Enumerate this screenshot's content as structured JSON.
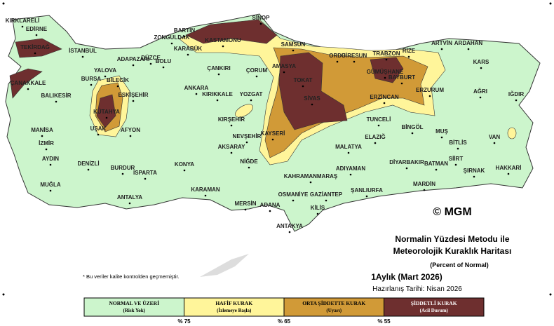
{
  "map": {
    "title_lines": [
      "Normalin Yüzdesi Metodu ile",
      "Meteorolojik Kuraklık Haritası"
    ],
    "subtitle": "(Percent of Normal)",
    "period": "1Aylık (Mart 2026)",
    "prepared": "Hazırlanış Tarihi: Nisan 2026",
    "copyright": "© MGM",
    "note": "* Bu veriler kalite kontrolden geçmemiştir.",
    "legend": [
      {
        "label": "NORMAL VE ÜZERİ",
        "sublabel": "(Risk Yok)",
        "color": "#ccf5cc"
      },
      {
        "label": "HAFİF KURAK",
        "sublabel": "(İzlemeye Başla)",
        "color": "#fff59a"
      },
      {
        "label": "ORTA ŞİDDETTE KURAK",
        "sublabel": "(Uyarı)",
        "color": "#d19a37"
      },
      {
        "label": "ŞİDDETLİ KURAK",
        "sublabel": "(Acil Durum)",
        "color": "#6e2f2f"
      }
    ],
    "thresholds": [
      "% 75",
      "% 65",
      "% 55"
    ],
    "cities": [
      "KIRKLARELİ",
      "EDİRNE",
      "TEKİRDAĞ",
      "İSTANBUL",
      "ZONGULDAK",
      "BARTIN",
      "SİNOP",
      "KASTAMONU",
      "KARABÜK",
      "SAMSUN",
      "ORDU",
      "GİRESUN",
      "TRABZON",
      "RİZE",
      "ARTVİN",
      "ARDAHAN",
      "ADAPAZARI",
      "DÜZCE",
      "BOLU",
      "YALOVA",
      "BURSA",
      "BİLECİK",
      "ESKİŞEHİR",
      "ÇANKIRI",
      "ÇORUM",
      "AMASYA",
      "TOKAT",
      "GÜMÜŞHANE",
      "BAYBURT",
      "KARS",
      "AĞRI",
      "IĞDIR",
      "ERZURUM",
      "ERZİNCAN",
      "ÇANAKKALE",
      "BALIKESİR",
      "ANKARA",
      "KIRIKKALE",
      "YOZGAT",
      "SİVAS",
      "KÜTAHYA",
      "AFYON",
      "UŞAK",
      "MANİSA",
      "İZMİR",
      "KIRŞEHİR",
      "NEVŞEHİR",
      "KAYSERİ",
      "TUNCELİ",
      "BİNGÖL",
      "MUŞ",
      "AKSARAY",
      "ELAZIĞ",
      "MALATYA",
      "BİTLİS",
      "VAN",
      "AYDIN",
      "DENİZLİ",
      "BURDUR",
      "ISPARTA",
      "KONYA",
      "NİĞDE",
      "ADIYAMAN",
      "DİYARBAKIR",
      "BATMAN",
      "SİİRT",
      "ŞIRNAK",
      "HAKKARİ",
      "MUĞLA",
      "KARAMAN",
      "KAHRAMANMARAŞ",
      "OSMANİYE",
      "GAZİANTEP",
      "ŞANLIURFA",
      "MARDİN",
      "ANTALYA",
      "MERSİN",
      "ADANA",
      "KİLİS",
      "ANTAKYA"
    ]
  }
}
